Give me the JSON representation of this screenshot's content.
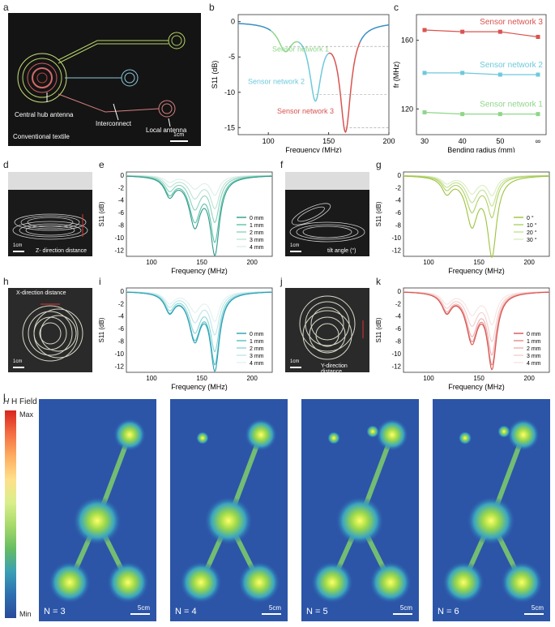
{
  "panel_letters": {
    "a": "a",
    "b": "b",
    "c": "c",
    "d": "d",
    "e": "e",
    "f": "f",
    "g": "g",
    "h": "h",
    "i": "i",
    "j": "j",
    "k": "k",
    "l": "l"
  },
  "photo_a": {
    "central_hub": "Central hub antenna",
    "interconnect": "Interconnect",
    "local_antenna": "Local antenna",
    "textile": "Conventional textile",
    "scale": "1cm"
  },
  "photo_d": {
    "label": "Z- direction distance",
    "scale": "1cm"
  },
  "photo_f": {
    "label": "tilt angle (°)",
    "scale": "1cm"
  },
  "photo_h": {
    "label": "X-direction distance",
    "scale": "1cm"
  },
  "photo_j": {
    "label": "Y-direction distance",
    "scale": "1cm"
  },
  "colors": {
    "net1": "#8fd68a",
    "net2": "#6ec9dc",
    "net3": "#d9534f",
    "blue": "#3a8fc4"
  },
  "chart_data": [
    {
      "id": "b",
      "type": "line",
      "title": "",
      "xlabel": "Frequency (MHz)",
      "ylabel": "S11 (dB)",
      "xlim": [
        75,
        200
      ],
      "ylim": [
        -16,
        1
      ],
      "xticks": [
        100,
        150,
        200
      ],
      "yticks": [
        0,
        -5,
        -10,
        -15
      ],
      "series": [
        {
          "name": "combined",
          "dips": [
            {
              "f": 114,
              "depth": -3.5,
              "w": 7
            },
            {
              "f": 139,
              "depth": -10.3,
              "w": 6
            },
            {
              "f": 164,
              "depth": -15,
              "w": 5.5
            }
          ]
        }
      ],
      "annotations": [
        "Sensor network 1",
        "Sensor network 2",
        "Sensor network 3"
      ]
    },
    {
      "id": "c",
      "type": "line",
      "title": "",
      "xlabel": "Bending radius (mm)",
      "ylabel": "fr (MHz)",
      "categories": [
        "30",
        "40",
        "50",
        "∞"
      ],
      "ylim": [
        105,
        175
      ],
      "yticks": [
        120,
        160
      ],
      "series": [
        {
          "name": "Sensor network 3",
          "values": [
            166,
            165,
            165,
            162
          ]
        },
        {
          "name": "Sensor network 2",
          "values": [
            141,
            141,
            140,
            140
          ]
        },
        {
          "name": "Sensor network 1",
          "values": [
            118,
            117,
            117,
            117
          ]
        }
      ]
    },
    {
      "id": "e",
      "type": "line",
      "xlabel": "Frequency (MHz)",
      "ylabel": "S11 (dB)",
      "xlim": [
        75,
        220
      ],
      "ylim": [
        -13,
        0.5
      ],
      "xticks": [
        100,
        150,
        200
      ],
      "yticks": [
        0,
        -2,
        -4,
        -6,
        -8,
        -10,
        -12
      ],
      "legend": [
        "0 mm",
        "1 mm",
        "2 mm",
        "3 mm",
        "4 mm"
      ],
      "series": [
        {
          "name": "0 mm",
          "depths": [
            -3,
            -7.6,
            -12
          ]
        },
        {
          "name": "1 mm",
          "depths": [
            -2.7,
            -6.8,
            -10
          ]
        },
        {
          "name": "2 mm",
          "depths": [
            -2.2,
            -5,
            -7
          ]
        },
        {
          "name": "3 mm",
          "depths": [
            -1.6,
            -3.4,
            -5
          ]
        },
        {
          "name": "4 mm",
          "depths": [
            -1,
            -2,
            -3
          ]
        }
      ]
    },
    {
      "id": "g",
      "type": "line",
      "xlabel": "Frequency (MHz)",
      "ylabel": "S11 (dB)",
      "xlim": [
        75,
        220
      ],
      "ylim": [
        -13,
        0.5
      ],
      "xticks": [
        100,
        150,
        200
      ],
      "yticks": [
        0,
        -2,
        -4,
        -6,
        -8,
        -10,
        -12
      ],
      "legend": [
        "0 °",
        "10 °",
        "20 °",
        "30 °"
      ],
      "series": [
        {
          "name": "0 °",
          "depths": [
            -2.5,
            -7.5,
            -12.3
          ]
        },
        {
          "name": "10 °",
          "depths": [
            -2,
            -5.5,
            -6.2
          ]
        },
        {
          "name": "20 °",
          "depths": [
            -1.6,
            -4,
            -4.5
          ]
        },
        {
          "name": "30 °",
          "depths": [
            -1.2,
            -2.8,
            -3
          ]
        }
      ]
    },
    {
      "id": "i",
      "type": "line",
      "xlabel": "Frequency (MHz)",
      "ylabel": "S11 (dB)",
      "xlim": [
        75,
        220
      ],
      "ylim": [
        -13,
        0.5
      ],
      "xticks": [
        100,
        150,
        200
      ],
      "yticks": [
        0,
        -2,
        -4,
        -6,
        -8,
        -10,
        -12
      ],
      "legend": [
        "0 mm",
        "1 mm",
        "2 mm",
        "3 mm",
        "4 mm"
      ],
      "series": [
        {
          "name": "0 mm",
          "depths": [
            -3,
            -7.3,
            -12
          ]
        },
        {
          "name": "1 mm",
          "depths": [
            -2.9,
            -7,
            -11
          ]
        },
        {
          "name": "2 mm",
          "depths": [
            -2.6,
            -6,
            -9
          ]
        },
        {
          "name": "3 mm",
          "depths": [
            -2.2,
            -4.5,
            -6.5
          ]
        },
        {
          "name": "4 mm",
          "depths": [
            -1.8,
            -3,
            -4.5
          ]
        }
      ]
    },
    {
      "id": "k",
      "type": "line",
      "xlabel": "Frequency (MHz)",
      "ylabel": "S11 (dB)",
      "xlim": [
        75,
        220
      ],
      "ylim": [
        -13,
        0.5
      ],
      "xticks": [
        100,
        150,
        200
      ],
      "yticks": [
        0,
        -2,
        -4,
        -6,
        -8,
        -10,
        -12
      ],
      "legend": [
        "0 mm",
        "1 mm",
        "2 mm",
        "3 mm",
        "4 mm"
      ],
      "series": [
        {
          "name": "0 mm",
          "depths": [
            -3,
            -7.6,
            -11.7
          ]
        },
        {
          "name": "1 mm",
          "depths": [
            -2.9,
            -7.2,
            -11
          ]
        },
        {
          "name": "2 mm",
          "depths": [
            -2.7,
            -6.5,
            -9.5
          ]
        },
        {
          "name": "3 mm",
          "depths": [
            -2.3,
            -5,
            -7.5
          ]
        },
        {
          "name": "4 mm",
          "depths": [
            -1.8,
            -3.5,
            -5
          ]
        }
      ]
    }
  ],
  "field": {
    "title": "H Field",
    "max": "Max",
    "min": "Min",
    "panels": [
      {
        "label": "N = 3",
        "scale": "5cm"
      },
      {
        "label": "N = 4",
        "scale": "5cm"
      },
      {
        "label": "N = 5",
        "scale": "5cm"
      },
      {
        "label": "N = 6",
        "scale": "5cm"
      }
    ]
  }
}
